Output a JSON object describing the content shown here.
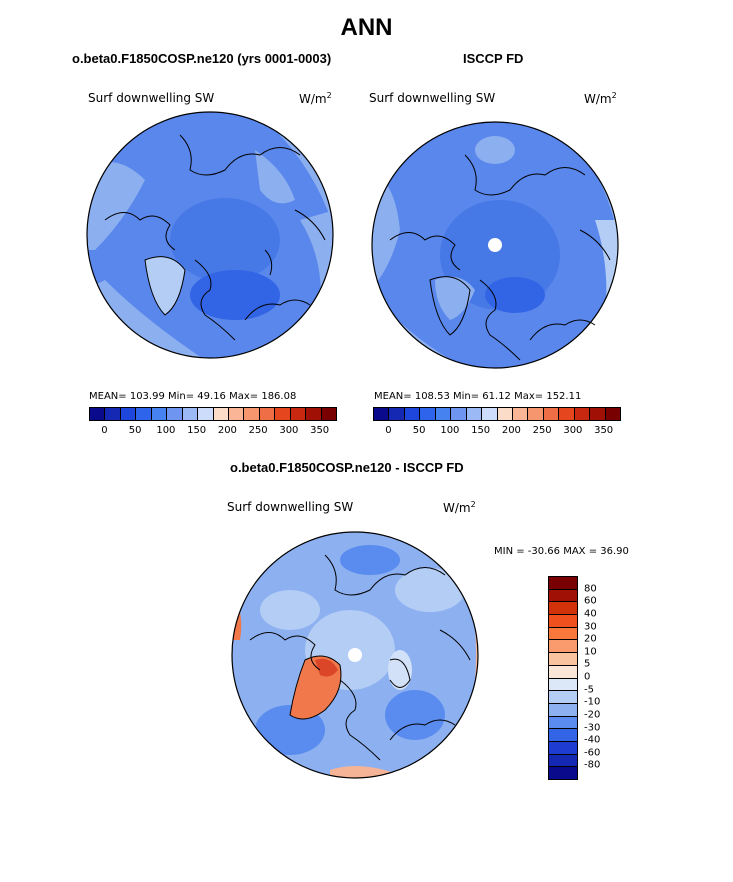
{
  "main_title": "ANN",
  "panels": {
    "left": {
      "title": "o.beta0.F1850COSP.ne120 (yrs 0001-0003)",
      "variable": "Surf downwelling SW",
      "units": "W/m",
      "units_exp": "2",
      "stats": "MEAN= 103.99   Min=  49.16   Max= 186.08"
    },
    "right": {
      "title": "ISCCP FD",
      "variable": "Surf downwelling SW",
      "units": "W/m",
      "units_exp": "2",
      "stats": "MEAN= 108.53   Min=  61.12   Max= 152.11"
    },
    "diff": {
      "title": "o.beta0.F1850COSP.ne120 - ISCCP FD",
      "variable": "Surf downwelling SW",
      "units": "W/m",
      "units_exp": "2",
      "minmax": "MIN = -30.66  MAX =  36.90"
    }
  },
  "colorbar_abs": {
    "labels": [
      "0",
      "50",
      "100",
      "150",
      "200",
      "250",
      "300",
      "350"
    ],
    "colors": [
      "#0a0a8c",
      "#1428b4",
      "#1e46dc",
      "#2d64eb",
      "#4682f0",
      "#6e96f0",
      "#9bb9f5",
      "#cddcfa",
      "#fadcc8",
      "#fab496",
      "#f5966e",
      "#f06e46",
      "#e6461e",
      "#c8280f",
      "#a01005",
      "#780000"
    ]
  },
  "colorbar_diff": {
    "labels": [
      "80",
      "60",
      "40",
      "30",
      "20",
      "10",
      "5",
      "0",
      "-5",
      "-10",
      "-20",
      "-30",
      "-40",
      "-60",
      "-80"
    ],
    "colors": [
      "#780000",
      "#a01005",
      "#d2320a",
      "#f0501e",
      "#fa783c",
      "#fa9b6e",
      "#fac3a0",
      "#fae6d7",
      "#dce8f8",
      "#b4cdf5",
      "#8cb0f0",
      "#5a8cf0",
      "#3264e6",
      "#1e3cd2",
      "#1428b4",
      "#0a0a8c"
    ]
  },
  "map_colors": {
    "ocean_base": "#5a87eb",
    "mid_blue": "#4678e6",
    "dark_blue": "#3264e6",
    "light_blue": "#8caff0",
    "pale_blue": "#b4cdf5",
    "diff_base": "#8cb0f0",
    "diff_light": "#b4cdf5",
    "diff_pale": "#d2e1f8",
    "diff_dark": "#5a8cf0",
    "diff_orange": "#f0784a",
    "diff_red": "#dc4628",
    "diff_peach": "#f5b496",
    "coast": "#000000"
  }
}
